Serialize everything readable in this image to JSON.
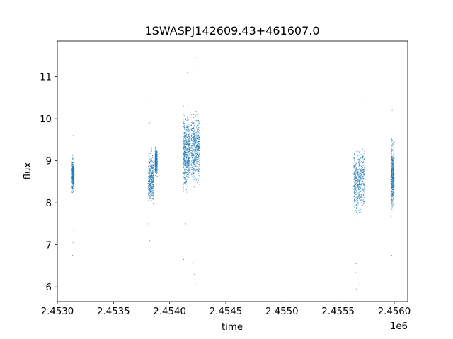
{
  "chart_data": {
    "type": "scatter",
    "title": "1SWASPJ142609.43+461607.0",
    "xlabel": "time",
    "ylabel": "flux",
    "x_offset_label": "1e6",
    "xlim": [
      2.453,
      2.45612
    ],
    "ylim": [
      5.65,
      11.85
    ],
    "x_ticks": [
      2.453,
      2.4535,
      2.454,
      2.4545,
      2.455,
      2.4555,
      2.456
    ],
    "x_tick_labels": [
      "2.4530",
      "2.4535",
      "2.4540",
      "2.4545",
      "2.4550",
      "2.4555",
      "2.4560"
    ],
    "y_ticks": [
      6,
      7,
      8,
      9,
      10,
      11
    ],
    "y_tick_labels": [
      "6",
      "7",
      "8",
      "9",
      "10",
      "11"
    ],
    "grid": false,
    "marker_color": "#1f77b4",
    "clusters": [
      {
        "x_start": 2.45313,
        "x_end": 2.45315,
        "y_center": 8.65,
        "y_spread": 0.35,
        "outliers": [
          6.75,
          7.05,
          7.35,
          9.6
        ]
      },
      {
        "x_start": 2.45381,
        "x_end": 2.45386,
        "y_center": 8.55,
        "y_spread": 0.5,
        "outliers": [
          6.5,
          7.1,
          7.5,
          9.9,
          10.4
        ]
      },
      {
        "x_start": 2.45387,
        "x_end": 2.45389,
        "y_center": 9.0,
        "y_spread": 0.3,
        "outliers": []
      },
      {
        "x_start": 2.45412,
        "x_end": 2.45418,
        "y_center": 9.2,
        "y_spread": 0.75,
        "outliers": [
          6.65,
          7.5,
          10.8,
          11.1
        ]
      },
      {
        "x_start": 2.45419,
        "x_end": 2.45427,
        "y_center": 9.3,
        "y_spread": 0.75,
        "outliers": [
          6.05,
          6.3,
          6.55,
          11.3,
          11.45
        ]
      },
      {
        "x_start": 2.45564,
        "x_end": 2.45574,
        "y_center": 8.5,
        "y_spread": 0.65,
        "outliers": [
          5.95,
          6.05,
          6.35,
          6.55,
          10.4,
          10.9,
          11.55
        ]
      },
      {
        "x_start": 2.45597,
        "x_end": 2.456,
        "y_center": 8.65,
        "y_spread": 0.7,
        "outliers": [
          6.45,
          6.75,
          10.2,
          10.8,
          11.25
        ]
      }
    ]
  }
}
